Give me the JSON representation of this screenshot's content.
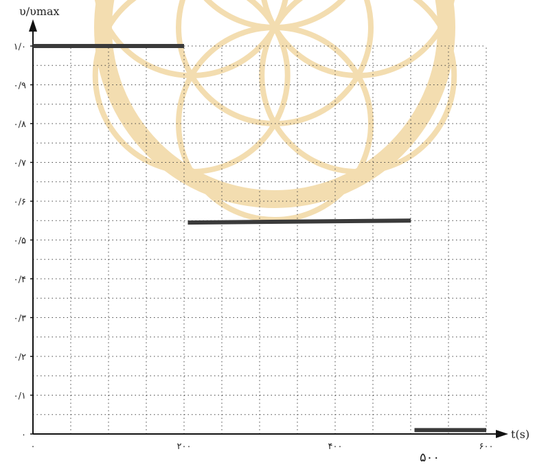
{
  "chart_data": {
    "type": "line",
    "ylabel": "υ/υmax",
    "xlabel": "t(s)",
    "xlim": [
      0,
      600
    ],
    "ylim": [
      0,
      1.0
    ],
    "grid": true,
    "x_ticks": [
      {
        "value": 0,
        "label": "۰"
      },
      {
        "value": 200,
        "label": "۲۰۰"
      },
      {
        "value": 400,
        "label": "۴۰۰"
      },
      {
        "value": 600,
        "label": "۶۰۰"
      }
    ],
    "y_ticks": [
      {
        "value": 0,
        "label": "۰"
      },
      {
        "value": 0.1,
        "label": "۰/۱"
      },
      {
        "value": 0.2,
        "label": "۰/۲"
      },
      {
        "value": 0.3,
        "label": "۰/۳"
      },
      {
        "value": 0.4,
        "label": "۰/۴"
      },
      {
        "value": 0.5,
        "label": "۰/۵"
      },
      {
        "value": 0.6,
        "label": "۰/۶"
      },
      {
        "value": 0.7,
        "label": "۰/۷"
      },
      {
        "value": 0.8,
        "label": "۰/۸"
      },
      {
        "value": 0.9,
        "label": "۰/۹"
      },
      {
        "value": 1.0,
        "label": "۱/۰"
      }
    ],
    "segments": [
      {
        "x": [
          0,
          200
        ],
        "y": [
          1.0,
          1.0
        ]
      },
      {
        "x": [
          205,
          500
        ],
        "y": [
          0.545,
          0.55
        ]
      },
      {
        "x": [
          505,
          600
        ],
        "y": [
          0.01,
          0.01
        ]
      }
    ],
    "annotations": [
      {
        "text": "۵۰۰",
        "x": 525,
        "handwritten": true
      }
    ],
    "colors": {
      "line": "#3a3a3a",
      "grid": "#444444",
      "axis": "#111111",
      "watermark": "#f3ddb0"
    }
  }
}
